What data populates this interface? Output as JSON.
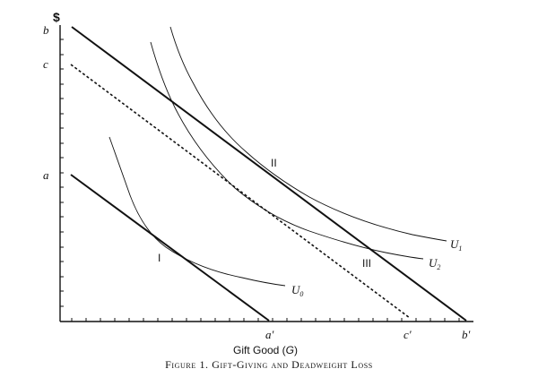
{
  "figure": {
    "caption": "Figure 1. Gift-Giving and Deadweight Loss",
    "y_axis_label": "$",
    "x_axis_label": "Gift Good (",
    "x_axis_var": "G",
    "x_axis_label_end": ")",
    "y_tick_labels": {
      "b": "b",
      "c": "c",
      "a": "a"
    },
    "x_tick_labels": {
      "a_prime": "a'",
      "c_prime": "c'",
      "b_prime": "b'"
    },
    "points": {
      "I": "I",
      "II": "II",
      "III": "III"
    },
    "curves": {
      "U0": {
        "letter": "U",
        "sub": "0"
      },
      "U1": {
        "letter": "U",
        "sub": "1"
      },
      "U2": {
        "letter": "U",
        "sub": "2"
      }
    },
    "lines": {
      "budget_a": {
        "from": "a",
        "to": "a'",
        "style": "solid"
      },
      "budget_b": {
        "from": "b",
        "to": "b'",
        "style": "solid"
      },
      "budget_c": {
        "from": "c",
        "to": "c'",
        "style": "dashed"
      }
    },
    "colors": {
      "ink": "#111111",
      "background": "#ffffff"
    }
  }
}
